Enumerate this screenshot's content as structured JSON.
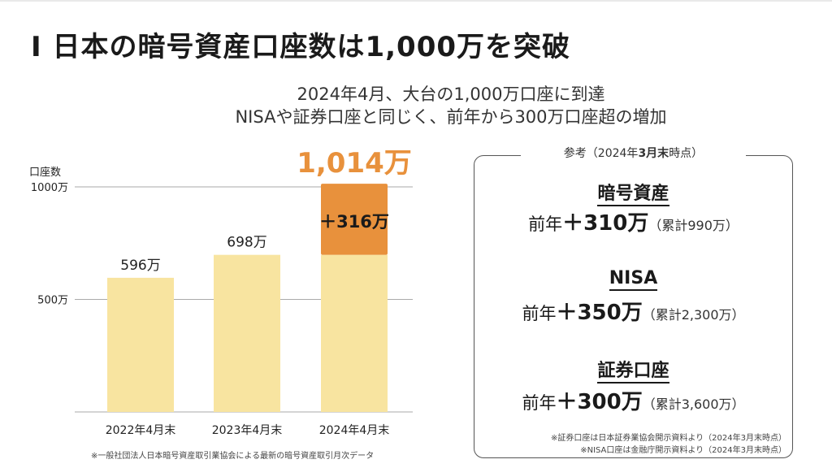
{
  "title": "I 日本の暗号資産口座数は1,000万を突破",
  "subtitle": [
    "2024年4月、大台の1,000万口座に到達",
    "NISAや証券口座と同じく、前年から300万口座超の増加"
  ],
  "chart_data": {
    "type": "bar",
    "ylabel": "口座数",
    "categories": [
      "2022年4月末",
      "2023年4月末",
      "2024年4月末"
    ],
    "series": [
      {
        "values": [
          596,
          698,
          698
        ]
      },
      {
        "values": [
          0,
          0,
          316
        ]
      }
    ],
    "data_labels": [
      "596万",
      "698万",
      ""
    ],
    "increment_label": "＋316万",
    "total_label": "1,014万",
    "yticks": [
      {
        "value": 500,
        "label": "500万"
      },
      {
        "value": 1000,
        "label": "1000万"
      }
    ],
    "ylim": [
      0,
      1000
    ],
    "grid": true,
    "colors": {
      "base": "#f8e4a0",
      "increment": "#e8913c",
      "total": "#e8913c"
    }
  },
  "reference": {
    "label_prefix": "参考（2024年",
    "label_bold": "3月末",
    "label_suffix": "時点）",
    "sections": [
      {
        "heading": "暗号資産",
        "prefix": "前年",
        "delta": "＋310万",
        "cumulative": "（累計990万）"
      },
      {
        "heading": "NISA",
        "prefix": "前年",
        "delta": "＋350万",
        "cumulative": "（累計2,300万）"
      },
      {
        "heading": "証券口座",
        "prefix": "前年",
        "delta": "＋300万",
        "cumulative": "（累計3,600万）"
      }
    ],
    "notes": [
      "※証券口座は日本証券業協会開示資料より（2024年3月末時点）",
      "※NISA口座は金融庁開示資料より（2024年3月末時点）"
    ]
  },
  "source": "※一般社団法人日本暗号資産取引業協会による最新の暗号資産取引月次データ"
}
